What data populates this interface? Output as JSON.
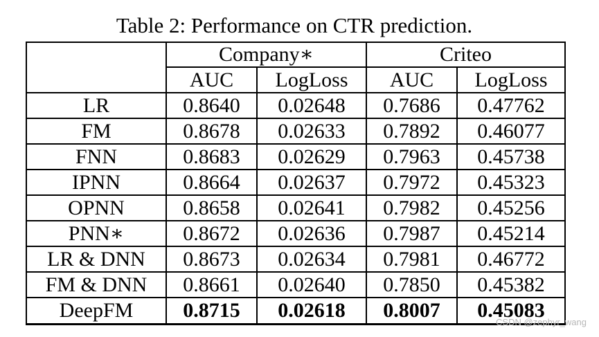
{
  "caption": "Table 2: Performance on CTR prediction.",
  "table": {
    "groups": [
      "Company∗",
      "Criteo"
    ],
    "metrics": [
      "AUC",
      "LogLoss",
      "AUC",
      "LogLoss"
    ],
    "rows": [
      {
        "model": "LR",
        "company_auc": "0.8640",
        "company_logloss": "0.02648",
        "criteo_auc": "0.7686",
        "criteo_logloss": "0.47762",
        "bold": false
      },
      {
        "model": "FM",
        "company_auc": "0.8678",
        "company_logloss": "0.02633",
        "criteo_auc": "0.7892",
        "criteo_logloss": "0.46077",
        "bold": false
      },
      {
        "model": "FNN",
        "company_auc": "0.8683",
        "company_logloss": "0.02629",
        "criteo_auc": "0.7963",
        "criteo_logloss": "0.45738",
        "bold": false
      },
      {
        "model": "IPNN",
        "company_auc": "0.8664",
        "company_logloss": "0.02637",
        "criteo_auc": "0.7972",
        "criteo_logloss": "0.45323",
        "bold": false
      },
      {
        "model": "OPNN",
        "company_auc": "0.8658",
        "company_logloss": "0.02641",
        "criteo_auc": "0.7982",
        "criteo_logloss": "0.45256",
        "bold": false
      },
      {
        "model": "PNN∗",
        "company_auc": "0.8672",
        "company_logloss": "0.02636",
        "criteo_auc": "0.7987",
        "criteo_logloss": "0.45214",
        "bold": false
      },
      {
        "model": "LR & DNN",
        "company_auc": "0.8673",
        "company_logloss": "0.02634",
        "criteo_auc": "0.7981",
        "criteo_logloss": "0.46772",
        "bold": false
      },
      {
        "model": "FM & DNN",
        "company_auc": "0.8661",
        "company_logloss": "0.02640",
        "criteo_auc": "0.7850",
        "criteo_logloss": "0.45382",
        "bold": false
      },
      {
        "model": "DeepFM",
        "company_auc": "0.8715",
        "company_logloss": "0.02618",
        "criteo_auc": "0.8007",
        "criteo_logloss": "0.45083",
        "bold": true
      }
    ]
  },
  "watermark": "CSDN @zephyr_wang"
}
